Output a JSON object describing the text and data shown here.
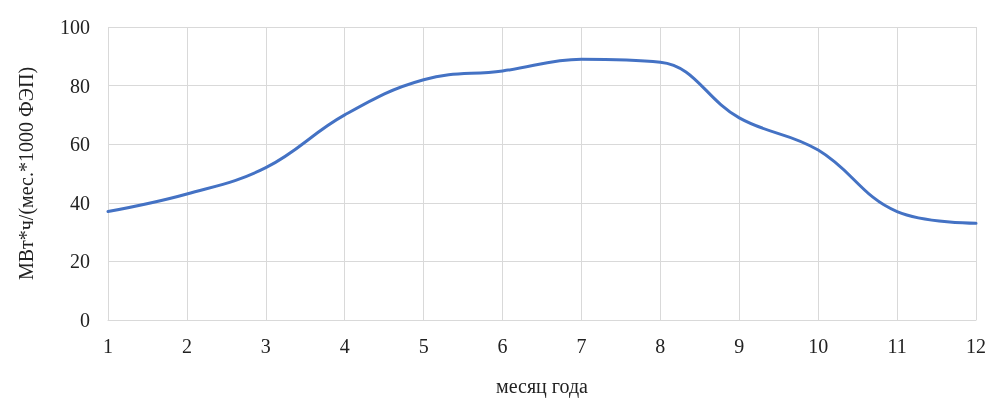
{
  "chart_data": {
    "type": "line",
    "xlabel": "месяц года",
    "ylabel": "МВт*ч/(мес.*1000 ФЭП)",
    "x": [
      1,
      2,
      3,
      4,
      5,
      6,
      7,
      8,
      9,
      10,
      11,
      12
    ],
    "series": [
      {
        "color": "#4472c4",
        "values": [
          37,
          43,
          52,
          70,
          82,
          85,
          89,
          88,
          69,
          58,
          37,
          33
        ]
      }
    ],
    "xlim": [
      1,
      12
    ],
    "xticks": [
      1,
      2,
      3,
      4,
      5,
      6,
      7,
      8,
      9,
      10,
      11,
      12
    ],
    "ylim": [
      0,
      100
    ],
    "yticks": [
      0,
      20,
      40,
      60,
      80,
      100
    ],
    "grid": true,
    "marker": "none",
    "line_style": "solid"
  }
}
